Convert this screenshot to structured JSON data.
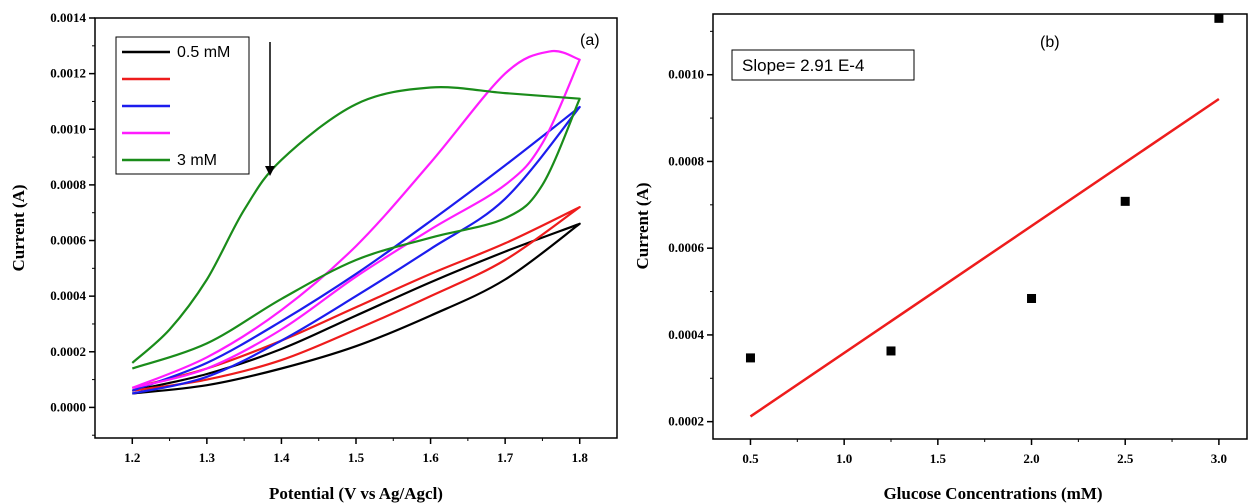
{
  "chart_data": [
    {
      "type": "line",
      "panel_label": "(a)",
      "xlabel": "Potential (V vs Ag/Agcl)",
      "ylabel": "Current (A)",
      "xlim": [
        1.15,
        1.85
      ],
      "ylim": [
        -0.00011,
        0.0014
      ],
      "x_ticks": [
        "1.2",
        "1.3",
        "1.4",
        "1.5",
        "1.6",
        "1.7",
        "1.8"
      ],
      "y_ticks": [
        "0.0000",
        "0.0002",
        "0.0004",
        "0.0006",
        "0.0008",
        "0.0010",
        "0.0012",
        "0.0014"
      ],
      "legend_position": "top-left",
      "annotation": "downward arrow indicating decreasing current with increasing concentration",
      "series": [
        {
          "name": "0.5 mM",
          "color": "#000000",
          "upper": {
            "x": [
              1.2,
              1.3,
              1.4,
              1.5,
              1.6,
              1.7,
              1.8
            ],
            "y": [
              6e-05,
              0.00012,
              0.00021,
              0.00033,
              0.00045,
              0.00056,
              0.00066
            ]
          },
          "lower": {
            "x": [
              1.8,
              1.7,
              1.6,
              1.5,
              1.4,
              1.3,
              1.2
            ],
            "y": [
              0.00066,
              0.00046,
              0.00033,
              0.00022,
              0.00014,
              8e-05,
              5e-05
            ]
          }
        },
        {
          "name": "",
          "color": "#ee1c1c",
          "upper": {
            "x": [
              1.2,
              1.3,
              1.4,
              1.5,
              1.6,
              1.7,
              1.8
            ],
            "y": [
              7e-05,
              0.00014,
              0.00024,
              0.00036,
              0.00048,
              0.00059,
              0.00072
            ]
          },
          "lower": {
            "x": [
              1.8,
              1.7,
              1.6,
              1.5,
              1.4,
              1.3,
              1.2
            ],
            "y": [
              0.00072,
              0.00053,
              0.0004,
              0.00028,
              0.00017,
              0.0001,
              6e-05
            ]
          }
        },
        {
          "name": "",
          "color": "#1c1cee",
          "upper": {
            "x": [
              1.2,
              1.3,
              1.4,
              1.5,
              1.6,
              1.7,
              1.8
            ],
            "y": [
              6e-05,
              0.00016,
              0.00031,
              0.00048,
              0.00067,
              0.00087,
              0.00108
            ]
          },
          "lower": {
            "x": [
              1.8,
              1.7,
              1.6,
              1.5,
              1.4,
              1.3,
              1.2
            ],
            "y": [
              0.00108,
              0.00075,
              0.00057,
              0.0004,
              0.00024,
              0.00011,
              5e-05
            ]
          }
        },
        {
          "name": "",
          "color": "#ff1cff",
          "upper": {
            "x": [
              1.2,
              1.3,
              1.4,
              1.5,
              1.6,
              1.7,
              1.76,
              1.8
            ],
            "y": [
              7e-05,
              0.00018,
              0.00035,
              0.00058,
              0.00088,
              0.0012,
              0.00128,
              0.00125
            ]
          },
          "lower": {
            "x": [
              1.8,
              1.75,
              1.7,
              1.6,
              1.5,
              1.4,
              1.3,
              1.2
            ],
            "y": [
              0.00125,
              0.00095,
              0.0008,
              0.00064,
              0.00047,
              0.00028,
              0.00014,
              7e-05
            ]
          }
        },
        {
          "name": "3 mM",
          "color": "#1a8c1a",
          "upper": {
            "x": [
              1.2,
              1.25,
              1.3,
              1.35,
              1.4,
              1.5,
              1.6,
              1.7,
              1.8
            ],
            "y": [
              0.00016,
              0.00028,
              0.00046,
              0.00071,
              0.00089,
              0.00109,
              0.00115,
              0.00113,
              0.00111
            ]
          },
          "lower": {
            "x": [
              1.8,
              1.75,
              1.7,
              1.6,
              1.5,
              1.4,
              1.3,
              1.2
            ],
            "y": [
              0.00111,
              0.0008,
              0.00068,
              0.00061,
              0.00053,
              0.00039,
              0.00023,
              0.00014
            ]
          }
        }
      ]
    },
    {
      "type": "scatter",
      "panel_label": "(b)",
      "xlabel": "Glucose Concentrations (mM)",
      "ylabel": "Current (A)",
      "xlim": [
        0.3,
        3.15
      ],
      "ylim": [
        0.00016,
        0.00114
      ],
      "x_ticks": [
        "0.5",
        "1.0",
        "1.5",
        "2.0",
        "2.5",
        "3.0"
      ],
      "y_ticks": [
        "0.0002",
        "0.0004",
        "0.0006",
        "0.0008",
        "0.0010"
      ],
      "annotation": "Slope= 2.91 E-4",
      "points": {
        "x": [
          0.5,
          1.25,
          2.0,
          2.5,
          3.0
        ],
        "y": [
          0.000347,
          0.000363,
          0.000484,
          0.000708,
          0.00113
        ]
      },
      "fit_line": {
        "color": "#ee1c1c",
        "x": [
          0.5,
          3.0
        ],
        "y": [
          0.000212,
          0.000944
        ]
      }
    }
  ]
}
